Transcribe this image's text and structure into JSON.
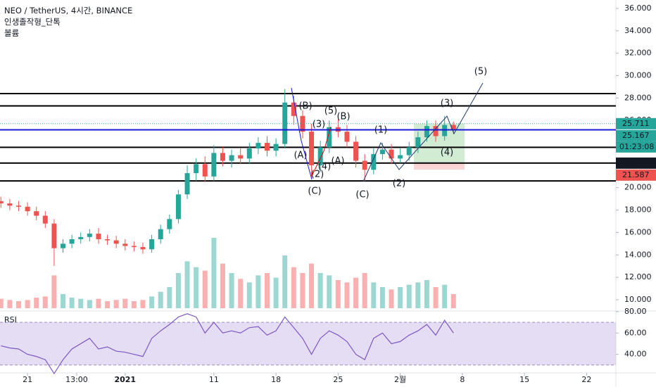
{
  "header": {
    "title": "NEO / TetherUS, 4시간, BINANCE",
    "line2": "인생졸작형_단톡",
    "line3": "볼륨"
  },
  "chart_data": {
    "type": "candlestick",
    "x": [
      -14,
      -13,
      -12,
      -11,
      -10,
      -9,
      -8,
      -7,
      -6,
      -5,
      -4,
      -3,
      -2,
      -1,
      0,
      1,
      2,
      3,
      4,
      5,
      6,
      7,
      8,
      9,
      10,
      11,
      12,
      13,
      14,
      15,
      16,
      17,
      18,
      19,
      20,
      21,
      22,
      23,
      24,
      25,
      26,
      27,
      28,
      29,
      30,
      31,
      32,
      33,
      34,
      35,
      36,
      37
    ],
    "open": [
      18.8,
      18.6,
      18.4,
      18.3,
      17.9,
      17.5,
      16.8,
      14.6,
      15.0,
      15.4,
      15.6,
      15.9,
      15.4,
      15.3,
      15.0,
      14.8,
      14.7,
      14.5,
      15.4,
      16.3,
      17.2,
      19.4,
      21.3,
      22.1,
      21.0,
      23.1,
      22.4,
      22.9,
      22.6,
      23.5,
      24.0,
      23.3,
      23.9,
      27.6,
      26.4,
      25.0,
      22.0,
      23.6,
      25.4,
      25.0,
      24.1,
      22.4,
      21.6,
      23.0,
      23.4,
      22.6,
      22.9,
      23.6,
      24.5,
      25.5,
      24.6,
      25.6
    ],
    "high": [
      19.2,
      19.0,
      18.8,
      18.7,
      18.3,
      17.9,
      17.2,
      15.4,
      15.8,
      16.0,
      16.3,
      16.4,
      15.8,
      15.7,
      15.4,
      15.2,
      15.1,
      15.8,
      16.7,
      17.6,
      19.8,
      22.0,
      22.6,
      22.8,
      23.8,
      23.6,
      23.4,
      23.5,
      24.0,
      24.5,
      24.6,
      24.4,
      28.8,
      28.2,
      26.9,
      25.7,
      24.2,
      26.0,
      26.1,
      25.6,
      24.6,
      23.0,
      23.5,
      24.0,
      23.9,
      23.5,
      24.1,
      25.0,
      26.0,
      26.0,
      26.4,
      25.9
    ],
    "low": [
      18.2,
      18.0,
      17.9,
      17.5,
      17.1,
      16.4,
      13.0,
      14.2,
      14.6,
      15.0,
      15.2,
      15.0,
      14.9,
      14.6,
      14.4,
      14.3,
      14.1,
      14.2,
      15.0,
      15.9,
      16.8,
      19.0,
      20.6,
      20.5,
      20.6,
      21.9,
      21.8,
      22.1,
      22.1,
      23.0,
      22.8,
      22.8,
      23.5,
      25.6,
      24.4,
      20.8,
      21.4,
      23.1,
      24.5,
      23.6,
      21.8,
      20.6,
      21.2,
      22.5,
      22.1,
      22.2,
      22.4,
      23.1,
      24.1,
      24.1,
      24.2,
      24.8
    ],
    "close": [
      18.6,
      18.4,
      18.3,
      17.9,
      17.5,
      16.8,
      14.6,
      15.0,
      15.4,
      15.6,
      15.9,
      15.4,
      15.3,
      15.0,
      14.8,
      14.7,
      14.5,
      15.4,
      16.3,
      17.2,
      19.4,
      21.3,
      22.1,
      21.0,
      23.1,
      22.4,
      22.9,
      22.6,
      23.5,
      24.0,
      23.3,
      23.9,
      27.6,
      26.4,
      25.0,
      22.0,
      23.6,
      25.4,
      25.0,
      24.1,
      22.4,
      21.6,
      23.0,
      23.4,
      22.6,
      22.9,
      23.6,
      24.5,
      25.5,
      24.6,
      25.6,
      25.167
    ],
    "up_color": "#26a69a",
    "down_color": "#ef5350",
    "volume": {
      "values": [
        8,
        7,
        6,
        7,
        9,
        10,
        28,
        12,
        9,
        8,
        7,
        8,
        6,
        7,
        8,
        6,
        7,
        10,
        14,
        18,
        30,
        40,
        35,
        32,
        60,
        38,
        30,
        25,
        22,
        28,
        30,
        26,
        45,
        35,
        30,
        38,
        30,
        28,
        24,
        22,
        26,
        30,
        22,
        18,
        16,
        18,
        20,
        22,
        24,
        18,
        20,
        12
      ]
    },
    "xlim": [
      -14.1,
      55.3
    ],
    "xticks": [
      {
        "value": -11,
        "label": "21"
      },
      {
        "value": -5.46,
        "label": "13:00"
      },
      {
        "value": 0,
        "label": "2021"
      },
      {
        "value": 10,
        "label": "11"
      },
      {
        "value": 17,
        "label": "18"
      },
      {
        "value": 24,
        "label": "25"
      },
      {
        "value": 31,
        "label": "2월"
      },
      {
        "value": 38,
        "label": "8"
      },
      {
        "value": 45,
        "label": "15"
      },
      {
        "value": 52,
        "label": "22"
      }
    ],
    "ylim": [
      9.12,
      36.75
    ],
    "yticks": [
      {
        "value": 10,
        "label": "10.000"
      },
      {
        "value": 12,
        "label": "12.000"
      },
      {
        "value": 14,
        "label": "14.000"
      },
      {
        "value": 16,
        "label": "16.000"
      },
      {
        "value": 18,
        "label": "18.000"
      },
      {
        "value": 20,
        "label": "20.000"
      },
      {
        "value": 22,
        "label": "22.000"
      },
      {
        "value": 24,
        "label": "24.000"
      },
      {
        "value": 26,
        "label": "26.000"
      },
      {
        "value": 28,
        "label": "28.000"
      },
      {
        "value": 30,
        "label": "30.000"
      },
      {
        "value": 32,
        "label": "32.000"
      },
      {
        "value": 34,
        "label": "34.000"
      },
      {
        "value": 36,
        "label": "36.000"
      }
    ],
    "levels": [
      28.4,
      27.3,
      23.6,
      22.2,
      20.6
    ],
    "price_labels": [
      {
        "value": 25.711,
        "label": "25.711",
        "color": "#26a69a"
      },
      {
        "value": 25.167,
        "label": "25.167",
        "color": "#26a69a"
      },
      {
        "value": 22.192,
        "label": "22.192",
        "color": "#131722"
      },
      {
        "value": 21.587,
        "label": "21.587",
        "color": "#ef5350"
      }
    ],
    "countdown": "01:23:08",
    "annotations": [
      {
        "text": "(5)",
        "color": "#1e3a6e"
      },
      {
        "text": "(3)",
        "color": "#1e3a6e"
      },
      {
        "text": "(B)",
        "color": "#1a1adb"
      },
      {
        "text": "(5)",
        "color": "#e00000"
      },
      {
        "text": "(B)",
        "color": "#555555"
      },
      {
        "text": "(3)",
        "color": "#e00000"
      },
      {
        "text": "(1)",
        "color": "#1e3a6e"
      },
      {
        "text": "(A)",
        "color": "#1a1adb"
      },
      {
        "text": "(4)",
        "color": "#e00000"
      },
      {
        "text": "(A)",
        "color": "#555555"
      },
      {
        "text": "(4)",
        "color": "#1e3a6e"
      },
      {
        "text": "(2)",
        "color": "#e00000"
      },
      {
        "text": "(C)",
        "color": "#1a1adb"
      },
      {
        "text": "(C)",
        "color": "#555555"
      },
      {
        "text": "(2)",
        "color": "#1e3a6e"
      }
    ],
    "rsi": {
      "name": "RSI",
      "color": "#7e57c2",
      "values": [
        48,
        46,
        45,
        40,
        38,
        35,
        22,
        35,
        45,
        50,
        55,
        45,
        47,
        43,
        42,
        40,
        38,
        55,
        62,
        68,
        75,
        78,
        75,
        60,
        70,
        60,
        62,
        60,
        65,
        66,
        58,
        62,
        75,
        65,
        55,
        40,
        55,
        62,
        58,
        52,
        40,
        35,
        55,
        60,
        50,
        52,
        58,
        62,
        68,
        58,
        72,
        60
      ],
      "ylim": [
        22.6,
        80.6
      ],
      "band": [
        30,
        70
      ],
      "yticks": [
        {
          "value": 40,
          "label": "40.00"
        },
        {
          "value": 60,
          "label": "60.00"
        },
        {
          "value": 80,
          "label": "80.00"
        }
      ]
    }
  }
}
